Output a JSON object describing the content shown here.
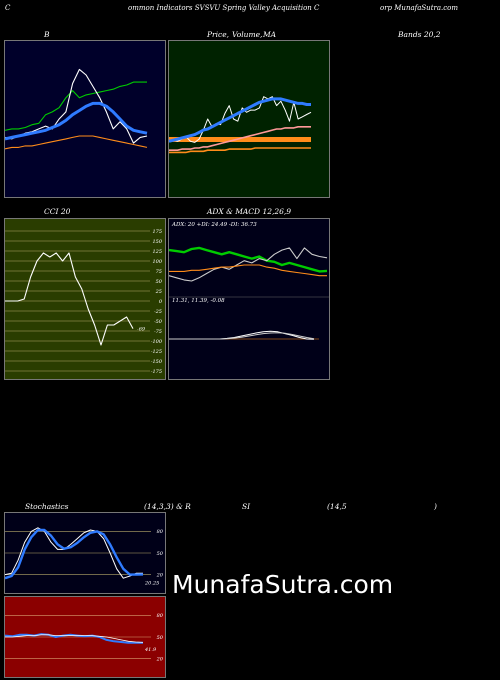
{
  "header": {
    "left": "C",
    "mid1": "ommon  Indicators SVSVU Spring Valley Acquisition  C",
    "right": "orp MunafaSutra.com"
  },
  "titles": {
    "bollinger": "B",
    "price_ma_1": "Price,",
    "price_ma_2": "Volume,",
    "price_ma_3": "MA",
    "bands": "Bands 20,2",
    "cci": "CCI 20",
    "adx_macd": "ADX  & MACD 12,26,9",
    "stoch": "Stochastics",
    "stoch_params": "(14,3,3) & R",
    "rsi": "SI",
    "rsi_params": "(14,5",
    "rsi_close": ")"
  },
  "adx_text": "ADX: 20  +DI: 24.49 -DI: 36.73",
  "macd_text": "11.31,  11.39,  -0.08",
  "cci_value_label": "-69",
  "stoch_value_label": "20.25",
  "rsi_value_label": "41.9",
  "watermark": "MunafaSutra.com",
  "colors": {
    "bollinger_bg": "#00002a",
    "price_bg": "#002200",
    "cci_bg": "#2a3d00",
    "adx_bg": "#000018",
    "stoch_bg": "#000018",
    "rsi_bg": "#8b0000",
    "blue": "#2f7bff",
    "green": "#00cc00",
    "orange": "#ff8c1a",
    "white": "#ffffff"
  },
  "chart_data": [
    {
      "type": "line",
      "name": "bollinger",
      "series": [
        {
          "role": "upper",
          "color": "#00cc00",
          "values": [
            137,
            138,
            138,
            139,
            141,
            142,
            148,
            150,
            153,
            160,
            165,
            160,
            162,
            163,
            164,
            165,
            166,
            168,
            169,
            171,
            171,
            171
          ]
        },
        {
          "role": "price",
          "color": "#ffffff",
          "values": [
            132,
            131,
            133,
            135,
            136,
            138,
            140,
            138,
            145,
            150,
            170,
            180,
            176,
            168,
            160,
            150,
            138,
            143,
            138,
            128,
            132,
            133
          ]
        },
        {
          "role": "middle",
          "color": "#2f7bff",
          "values": [
            131,
            132,
            133,
            134,
            135,
            136,
            137,
            139,
            141,
            144,
            148,
            151,
            154,
            156,
            156,
            154,
            150,
            145,
            140,
            137,
            136,
            135
          ]
        },
        {
          "role": "lower",
          "color": "#ff8c1a",
          "values": [
            124,
            125,
            125,
            126,
            126,
            127,
            128,
            129,
            130,
            131,
            132,
            133,
            133,
            133,
            132,
            131,
            130,
            129,
            128,
            127,
            126,
            125
          ]
        }
      ],
      "ylim": [
        90,
        200
      ]
    },
    {
      "type": "line",
      "name": "price_ma",
      "series": [
        {
          "role": "price",
          "color": "#ffffff",
          "values": [
            150,
            151,
            150,
            152,
            154,
            150,
            149,
            152,
            160,
            170,
            163,
            166,
            165,
            175,
            182,
            170,
            168,
            180,
            176,
            178,
            178,
            180,
            190,
            188,
            190,
            182,
            186,
            178,
            168,
            185,
            170,
            172,
            174,
            176
          ]
        },
        {
          "role": "ma_blue",
          "color": "#2f7bff",
          "values": [
            150,
            151,
            152,
            153,
            154,
            155,
            156,
            158,
            160,
            161,
            163,
            165,
            167,
            169,
            171,
            173,
            175,
            177,
            179,
            181,
            183,
            185,
            186,
            187,
            188,
            188,
            188,
            187,
            186,
            185,
            184,
            184,
            183,
            183
          ]
        },
        {
          "role": "ma_pink",
          "color": "#ff9999",
          "values": [
            142,
            142,
            142,
            143,
            143,
            143,
            144,
            144,
            145,
            145,
            146,
            147,
            148,
            149,
            150,
            151,
            152,
            153,
            154,
            155,
            156,
            157,
            158,
            159,
            160,
            161,
            161,
            162,
            162,
            162,
            163,
            163,
            163,
            163
          ]
        },
        {
          "role": "ma_orange",
          "color": "#ff8c1a",
          "values": [
            140,
            140,
            140,
            140,
            140,
            141,
            141,
            141,
            141,
            142,
            142,
            142,
            142,
            142,
            143,
            143,
            143,
            143,
            143,
            143,
            144,
            144,
            144,
            144,
            144,
            144,
            144,
            144,
            144,
            144,
            144,
            144,
            144,
            144
          ]
        }
      ],
      "ylim": [
        100,
        240
      ]
    },
    {
      "type": "line",
      "name": "cci",
      "series": [
        {
          "role": "cci",
          "color": "#ffffff",
          "values": [
            0,
            0,
            0,
            5,
            60,
            100,
            120,
            110,
            120,
            100,
            120,
            60,
            30,
            -20,
            -60,
            -110,
            -60,
            -60,
            -50,
            -40,
            -69
          ]
        }
      ],
      "ylim": [
        -175,
        175
      ],
      "ticks": [
        175,
        150,
        125,
        100,
        75,
        50,
        25,
        0,
        -25,
        -50,
        -75,
        -100,
        -125,
        -150,
        -175
      ]
    },
    {
      "type": "line",
      "name": "adx_macd",
      "series": [
        {
          "role": "plus_di",
          "color": "#00cc00",
          "values": [
            44,
            43,
            42,
            45,
            46,
            44,
            42,
            40,
            42,
            40,
            38,
            36,
            38,
            34,
            33,
            30,
            32,
            30,
            28,
            26,
            24,
            24.49
          ]
        },
        {
          "role": "minus_di",
          "color": "#cccccc",
          "values": [
            20,
            18,
            16,
            15,
            18,
            22,
            26,
            28,
            26,
            30,
            34,
            32,
            36,
            34,
            40,
            44,
            46,
            36,
            46,
            40,
            38,
            36.73
          ]
        },
        {
          "role": "adx",
          "color": "#ff8c1a",
          "values": [
            24,
            24,
            24,
            25,
            25,
            26,
            27,
            28,
            28,
            29,
            30,
            30,
            30,
            28,
            27,
            25,
            24,
            23,
            22,
            21,
            20,
            20
          ]
        },
        {
          "role": "macd",
          "color": "#ffffff",
          "values": [
            0,
            0,
            0,
            0,
            0,
            0,
            0,
            0,
            0.2,
            0.5,
            1,
            1.5,
            2,
            2.4,
            2.6,
            2.4,
            1.8,
            1.2,
            0.5,
            0,
            -0.08
          ]
        },
        {
          "role": "signal",
          "color": "#cccccc",
          "values": [
            0,
            0,
            0,
            0,
            0,
            0,
            0,
            0,
            0.1,
            0.3,
            0.6,
            1,
            1.4,
            1.8,
            2,
            2.1,
            1.9,
            1.5,
            1,
            0.5,
            0.1
          ]
        }
      ]
    },
    {
      "type": "line",
      "name": "stochastics",
      "series": [
        {
          "role": "k",
          "color": "#ffffff",
          "values": [
            20,
            22,
            40,
            65,
            80,
            85,
            80,
            65,
            55,
            55,
            62,
            70,
            78,
            82,
            80,
            70,
            50,
            28,
            15,
            18,
            22,
            22
          ]
        },
        {
          "role": "d",
          "color": "#2f7bff",
          "values": [
            15,
            18,
            30,
            55,
            72,
            82,
            82,
            74,
            62,
            56,
            58,
            64,
            72,
            78,
            80,
            76,
            62,
            44,
            28,
            20,
            20,
            20.25
          ]
        }
      ],
      "ylim": [
        0,
        100
      ],
      "ticks": [
        80,
        50,
        20
      ]
    },
    {
      "type": "line",
      "name": "rsi",
      "series": [
        {
          "role": "rsi",
          "color": "#2f7bff",
          "values": [
            52,
            51,
            53,
            53,
            52,
            54,
            53,
            50,
            52,
            53,
            52,
            51,
            52,
            50,
            46,
            44,
            43,
            42,
            42,
            41.9
          ]
        },
        {
          "role": "rsi_avg",
          "color": "#ffffff",
          "values": [
            50,
            50,
            51,
            52,
            52,
            53,
            53,
            52,
            52,
            52,
            52,
            52,
            52,
            51,
            50,
            48,
            46,
            44,
            43,
            42.5
          ]
        }
      ],
      "ylim": [
        0,
        100
      ],
      "ticks": [
        80,
        50,
        20
      ]
    }
  ]
}
